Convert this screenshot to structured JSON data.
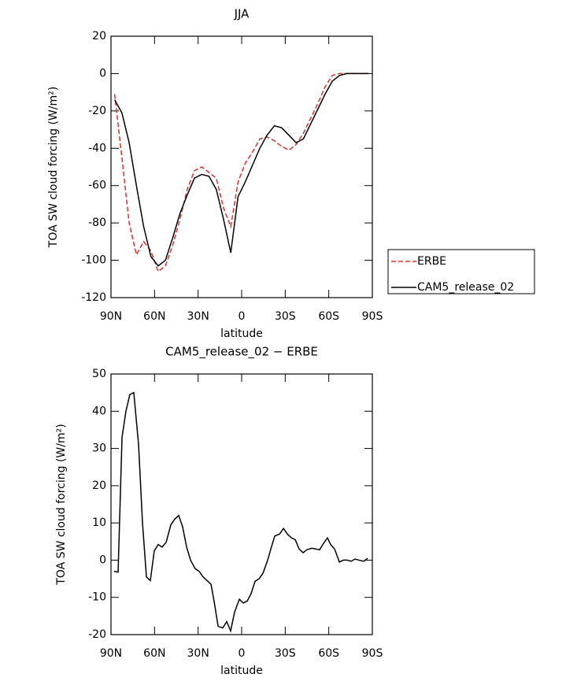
{
  "chart_data": [
    {
      "type": "line",
      "title": "JJA",
      "x_label": "latitude",
      "y_label": "TOA SW cloud forcing (W/m²)",
      "x": [
        87.5,
        82.5,
        77.5,
        72.5,
        67.5,
        62.5,
        57.5,
        52.5,
        47.5,
        42.5,
        37.5,
        32.5,
        27.5,
        22.5,
        17.5,
        12.5,
        7.5,
        2.5,
        -2.5,
        -7.5,
        -12.5,
        -17.5,
        -22.5,
        -27.5,
        -32.5,
        -37.5,
        -42.5,
        -47.5,
        -52.5,
        -57.5,
        -62.5,
        -67.5,
        -72.5,
        -77.5,
        -82.5,
        -87.5
      ],
      "series": [
        {
          "name": "ERBE",
          "color": "#e0302a",
          "linestyle": "dashed",
          "values": [
            -11,
            -45,
            -80,
            -97,
            -90,
            -95,
            -106,
            -103,
            -92,
            -78,
            -62,
            -52,
            -50,
            -53,
            -56,
            -72,
            -82,
            -58,
            -48,
            -42,
            -35,
            -34,
            -36,
            -39,
            -41,
            -38,
            -32,
            -24,
            -16,
            -7,
            -1,
            0,
            0,
            0,
            0,
            0
          ]
        },
        {
          "name": "CAM5_release_02",
          "color": "#000000",
          "linestyle": "solid",
          "values": [
            -14,
            -21,
            -37,
            -60,
            -82,
            -98,
            -103,
            -100,
            -88,
            -75,
            -65,
            -56,
            -54,
            -55,
            -62,
            -78,
            -96,
            -66,
            -58,
            -49,
            -40,
            -33,
            -28,
            -29,
            -33,
            -37,
            -35,
            -27,
            -19,
            -11,
            -4,
            -1,
            0,
            0,
            0,
            0
          ]
        }
      ],
      "xlim": [
        90,
        -90
      ],
      "xticks": [
        {
          "value": 90,
          "label": "90N"
        },
        {
          "value": 60,
          "label": "60N"
        },
        {
          "value": 30,
          "label": "30N"
        },
        0,
        {
          "value": -30,
          "label": "30S"
        },
        {
          "value": -60,
          "label": "60S"
        },
        {
          "value": -90,
          "label": "90S"
        }
      ],
      "ylim": [
        -120,
        20
      ],
      "yticks": [
        20,
        0,
        -20,
        -40,
        -60,
        -80,
        -100,
        -120
      ],
      "legend": "right"
    },
    {
      "type": "line",
      "title": "CAM5_release_02 − ERBE",
      "x_label": "latitude",
      "y_label": "TOA SW cloud forcing (W/m²)",
      "x": [
        87.8,
        85.1,
        82.4,
        79.7,
        77.0,
        74.3,
        71.0,
        68.3,
        65.6,
        62.9,
        60.2,
        57.5,
        54.8,
        52.0,
        48.8,
        46.1,
        43.4,
        40.7,
        37.9,
        35.2,
        32.0,
        29.3,
        26.6,
        23.8,
        21.1,
        19.0,
        16.2,
        13.0,
        10.3,
        7.6,
        4.9,
        1.6,
        -1.1,
        -3.8,
        -6.5,
        -9.2,
        -12.0,
        -14.7,
        -17.9,
        -20.1,
        -22.8,
        -26.1,
        -28.8,
        -31.5,
        -34.2,
        -36.9,
        -39.6,
        -42.3,
        -45.0,
        -48.3,
        -51.0,
        -53.7,
        -56.4,
        -59.1,
        -61.3,
        -64.0,
        -67.3,
        -70.0,
        -72.7,
        -75.4,
        -78.1,
        -80.8,
        -84.1,
        -86.8
      ],
      "series": [
        {
          "name": "CAM5_release_02 − ERBE",
          "color": "#000000",
          "linestyle": "solid",
          "values": [
            -3,
            -3.2,
            33,
            40,
            44.5,
            45,
            31,
            10,
            -4.5,
            -5.5,
            2.5,
            4.2,
            3.5,
            4.8,
            9.5,
            11,
            12,
            9,
            3.5,
            0,
            -2.3,
            -3,
            -4.5,
            -5.5,
            -6.5,
            -11,
            -17.8,
            -18.2,
            -16.5,
            -19,
            -14,
            -10.5,
            -11.5,
            -11,
            -9,
            -5.7,
            -5,
            -3.5,
            0,
            3,
            6.5,
            7,
            8.5,
            7,
            6,
            5.5,
            3,
            2,
            2.8,
            3.2,
            3,
            2.8,
            4.5,
            6,
            4.2,
            3,
            -0.5,
            0,
            0,
            -0.3,
            0.3,
            0,
            -0.3,
            0.5
          ]
        }
      ],
      "xlim": [
        90,
        -90
      ],
      "xticks": [
        {
          "value": 90,
          "label": "90N"
        },
        {
          "value": 60,
          "label": "60N"
        },
        {
          "value": 30,
          "label": "30N"
        },
        0,
        {
          "value": -30,
          "label": "30S"
        },
        {
          "value": -60,
          "label": "60S"
        },
        {
          "value": -90,
          "label": "90S"
        }
      ],
      "ylim": [
        -20,
        50
      ],
      "yticks": [
        50,
        40,
        30,
        20,
        10,
        0,
        -10,
        -20
      ]
    }
  ]
}
